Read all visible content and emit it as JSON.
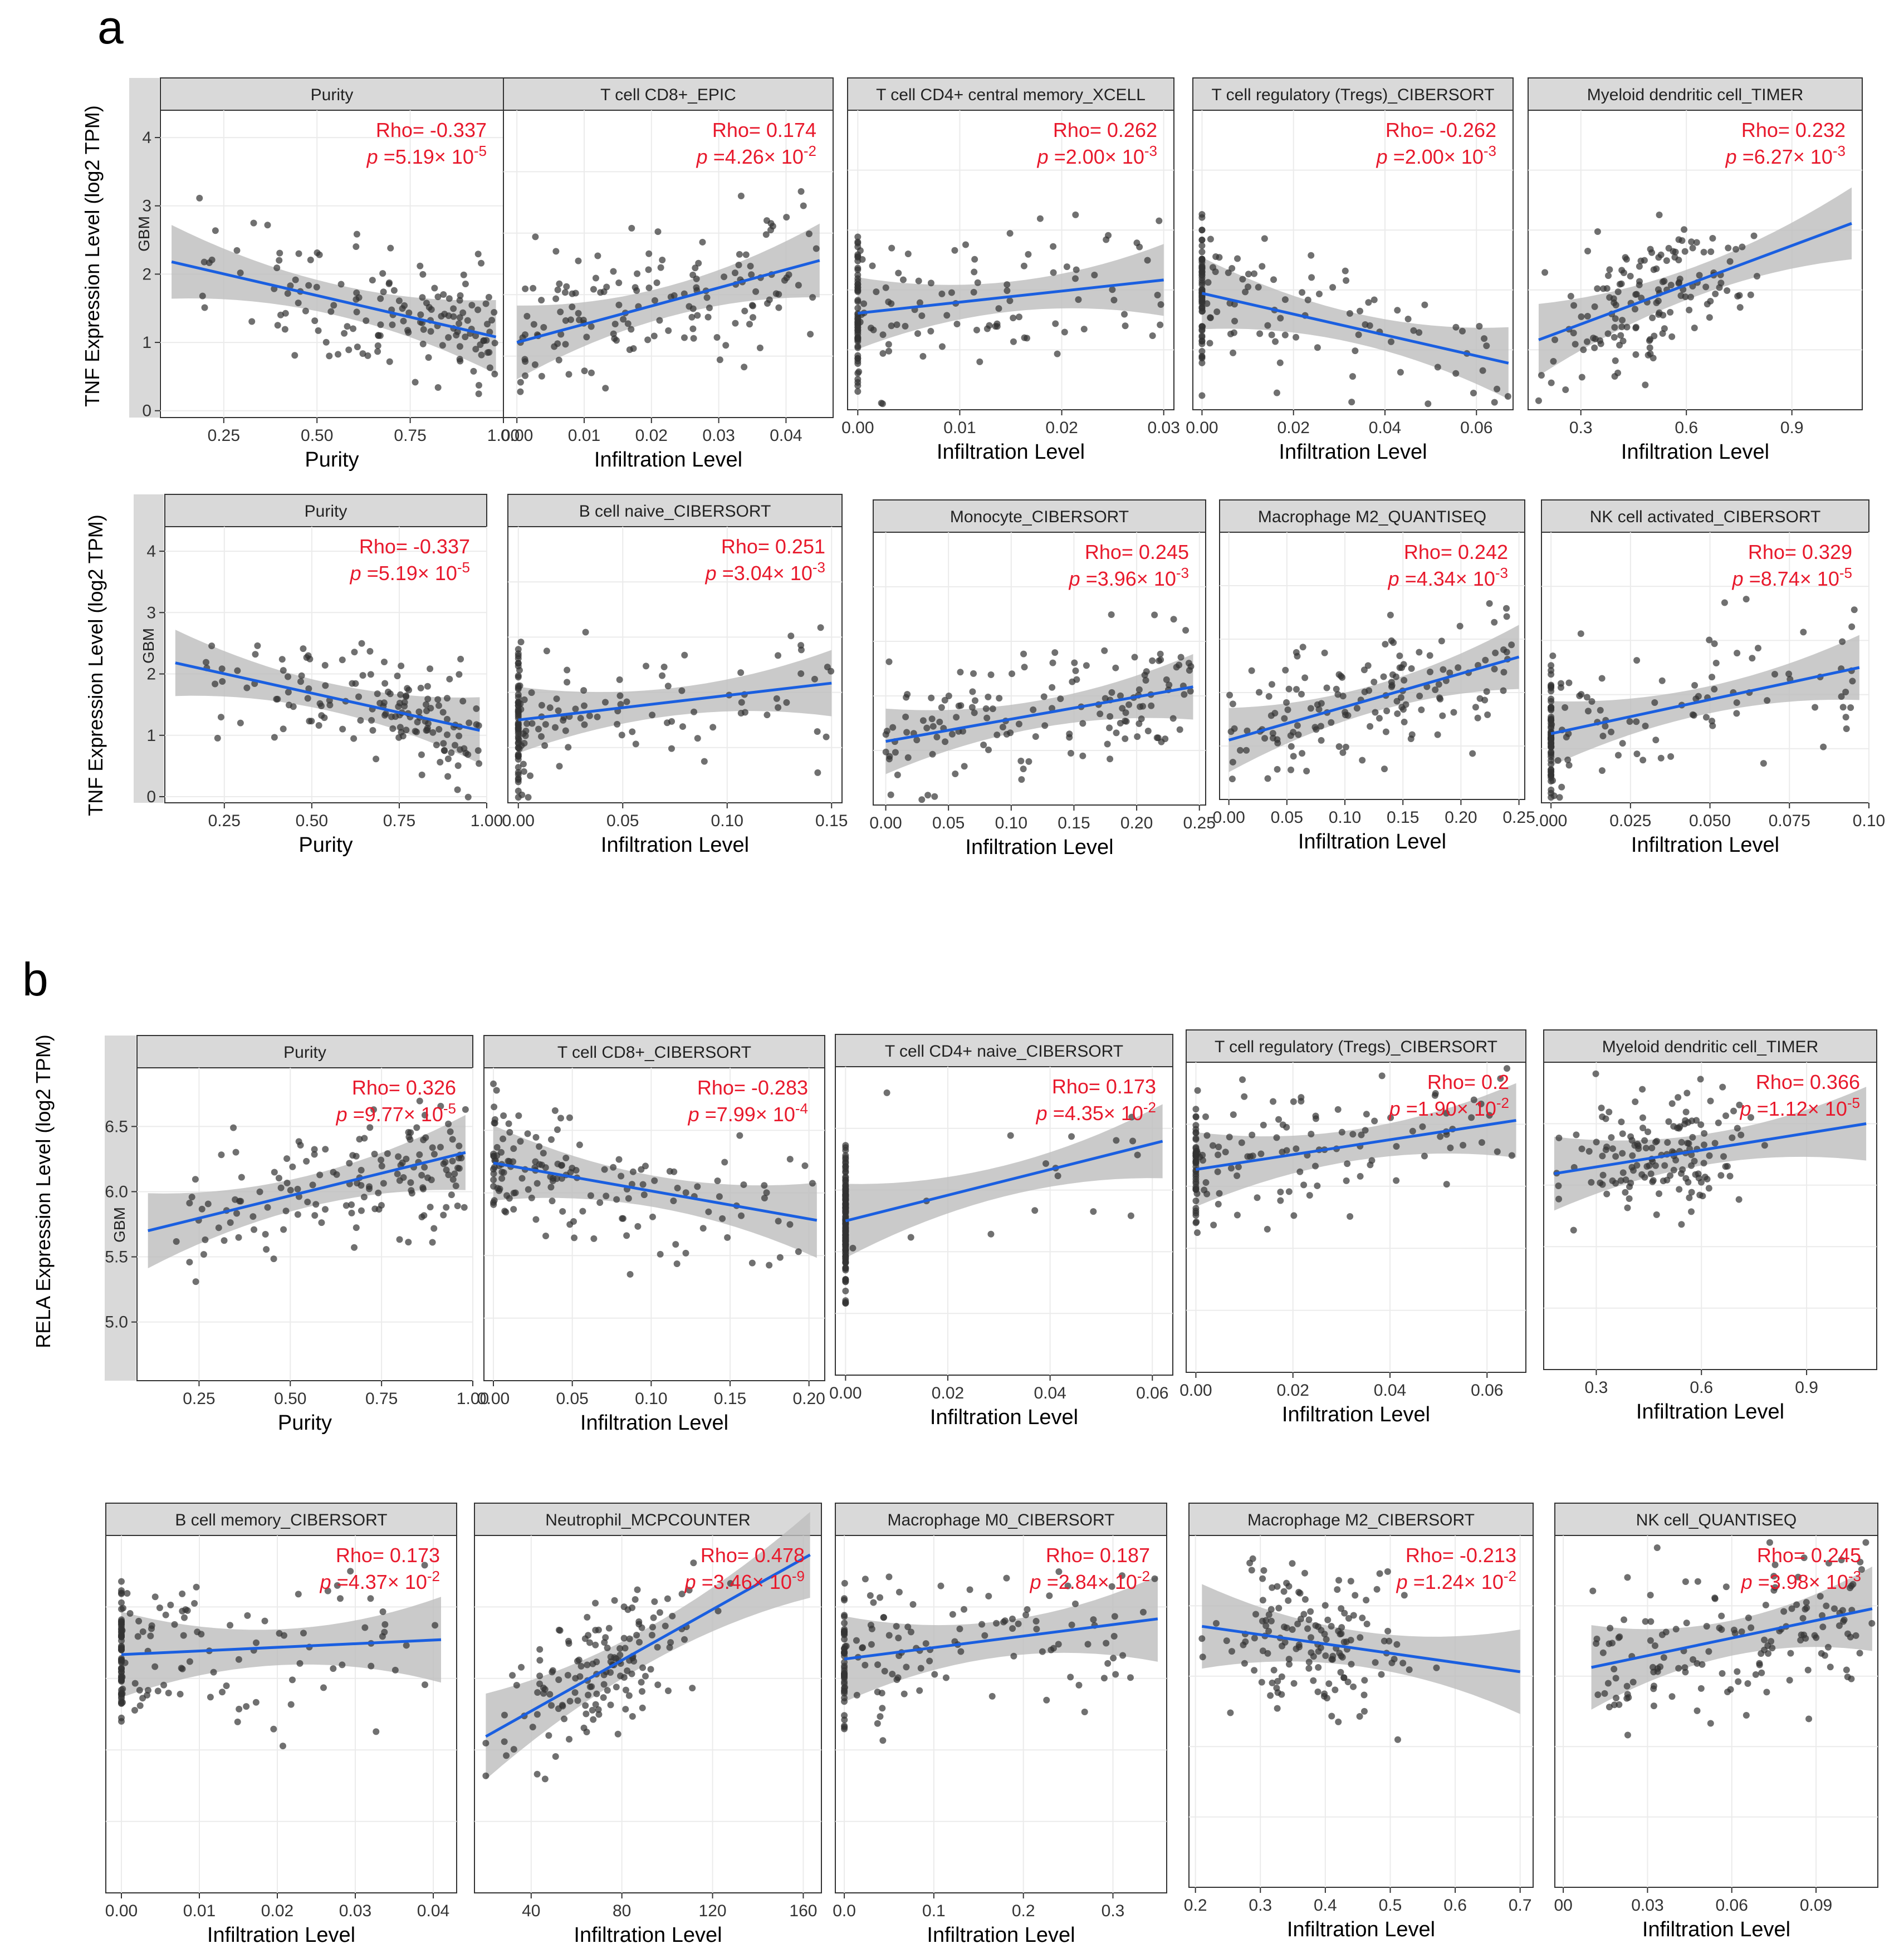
{
  "figure": {
    "panel_a_label": "a",
    "panel_b_label": "b",
    "panel_a_ylabel": "TNF Expression Level (log2 TPM)",
    "panel_b_ylabel": "RELA Expression Level (log2 TPM)",
    "facet_label": "GBM",
    "colors": {
      "fit_line": "#1a5fe0",
      "ribbon": "#bdbdbd",
      "point": "#333333",
      "annotation": "#e8192c",
      "strip": "#d9d9d9",
      "grid": "#ebebeb"
    }
  },
  "chart_data": [
    {
      "id": "a1",
      "type": "scatter",
      "title": "Purity",
      "xlabel": "Purity",
      "ylabel": "TNF Expression Level (log2 TPM)",
      "xlim": [
        0.08,
        1.0
      ],
      "ylim": [
        -0.1,
        4.4
      ],
      "xticks": [
        "0.25",
        "0.50",
        "0.75",
        "1.00"
      ],
      "xtick_values": [
        0.25,
        0.5,
        0.75,
        1.0
      ],
      "yticks": [
        "0",
        "1",
        "2",
        "3",
        "4"
      ],
      "ytick_values": [
        0,
        1,
        2,
        3,
        4
      ],
      "rho_text": "Rho= -0.337",
      "p_text": "p",
      "p_rest": " =5.19× 10",
      "p_exp": "-5",
      "fit": {
        "x0": 0.11,
        "y0": 2.18,
        "x1": 0.98,
        "y1": 1.08
      },
      "seed": 11,
      "n": 150,
      "noise": 0.7,
      "xdist": "purity",
      "xrange": [
        0.11,
        0.98
      ]
    },
    {
      "id": "a2",
      "type": "scatter",
      "title": "T cell CD8+_EPIC",
      "xlabel": "Infiltration Level",
      "ylabel": "",
      "xlim": [
        -0.002,
        0.047
      ],
      "ylim": [
        -0.1,
        4.4
      ],
      "xticks": [
        "0.00",
        "0.01",
        "0.02",
        "0.03",
        "0.04"
      ],
      "xtick_values": [
        0.0,
        0.01,
        0.02,
        0.03,
        0.04
      ],
      "yticks": [],
      "ytick_values": [],
      "rho_text": "Rho= 0.174",
      "p_text": "p",
      "p_rest": " =4.26× 10",
      "p_exp": "-2",
      "fit": {
        "x0": 0.0,
        "y0": 1.0,
        "x1": 0.045,
        "y1": 2.2
      },
      "seed": 12,
      "n": 150,
      "noise": 0.8,
      "xdist": "uniform",
      "xrange": [
        0.0,
        0.045
      ]
    },
    {
      "id": "a3",
      "type": "scatter",
      "title": "T cell CD4+ central memory_XCELL",
      "xlabel": "Infiltration Level",
      "ylabel": "",
      "xlim": [
        -0.001,
        0.031
      ],
      "ylim": [
        -0.1,
        4.4
      ],
      "xticks": [
        "0.00",
        "0.01",
        "0.02",
        "0.03"
      ],
      "xtick_values": [
        0.0,
        0.01,
        0.02,
        0.03
      ],
      "yticks": [],
      "ytick_values": [],
      "rho_text": "Rho= 0.262",
      "p_text": "p",
      "p_rest": " =2.00× 10",
      "p_exp": "-3",
      "fit": {
        "x0": 0.0,
        "y0": 1.35,
        "x1": 0.03,
        "y1": 1.85
      },
      "seed": 13,
      "n": 150,
      "noise": 0.8,
      "xdist": "zero",
      "xrange": [
        0.0,
        0.03
      ]
    },
    {
      "id": "a4",
      "type": "scatter",
      "title": "T cell regulatory (Tregs)_CIBERSORT",
      "xlabel": "Infiltration Level",
      "ylabel": "",
      "xlim": [
        -0.002,
        0.068
      ],
      "ylim": [
        -0.1,
        4.4
      ],
      "xticks": [
        "0.00",
        "0.02",
        "0.04",
        "0.06"
      ],
      "xtick_values": [
        0.0,
        0.02,
        0.04,
        0.06
      ],
      "yticks": [],
      "ytick_values": [],
      "rho_text": "Rho= -0.262",
      "p_text": "p",
      "p_rest": " =2.00× 10",
      "p_exp": "-3",
      "fit": {
        "x0": 0.0,
        "y0": 1.65,
        "x1": 0.067,
        "y1": 0.6
      },
      "seed": 14,
      "n": 150,
      "noise": 0.75,
      "xdist": "zero",
      "xrange": [
        0.0,
        0.067
      ]
    },
    {
      "id": "a5",
      "type": "scatter",
      "title": "Myeloid dendritic cell_TIMER",
      "xlabel": "Infiltration Level",
      "ylabel": "",
      "xlim": [
        0.15,
        1.1
      ],
      "ylim": [
        -0.1,
        4.4
      ],
      "xticks": [
        "0.3",
        "0.6",
        "0.9"
      ],
      "xtick_values": [
        0.3,
        0.6,
        0.9
      ],
      "yticks": [],
      "ytick_values": [],
      "rho_text": "Rho= 0.232",
      "p_text": "p",
      "p_rest": " =6.27× 10",
      "p_exp": "-3",
      "fit": {
        "x0": 0.18,
        "y0": 0.95,
        "x1": 1.07,
        "y1": 2.7
      },
      "seed": 15,
      "n": 150,
      "noise": 0.75,
      "xdist": "cluster",
      "xrange": [
        0.18,
        1.07
      ]
    },
    {
      "id": "a6",
      "type": "scatter",
      "title": "Purity",
      "xlabel": "Purity",
      "ylabel": "TNF Expression Level (log2 TPM)",
      "xlim": [
        0.08,
        1.0
      ],
      "ylim": [
        -0.1,
        4.4
      ],
      "xticks": [
        "0.25",
        "0.50",
        "0.75",
        "1.00"
      ],
      "xtick_values": [
        0.25,
        0.5,
        0.75,
        1.0
      ],
      "yticks": [
        "0",
        "1",
        "2",
        "3",
        "4"
      ],
      "ytick_values": [
        0,
        1,
        2,
        3,
        4
      ],
      "rho_text": "Rho= -0.337",
      "p_text": "p",
      "p_rest": " =5.19× 10",
      "p_exp": "-5",
      "fit": {
        "x0": 0.11,
        "y0": 2.18,
        "x1": 0.98,
        "y1": 1.08
      },
      "seed": 11,
      "n": 150,
      "noise": 0.7,
      "xdist": "purity",
      "xrange": [
        0.11,
        0.98
      ]
    },
    {
      "id": "a7",
      "type": "scatter",
      "title": "B cell naive_CIBERSORT",
      "xlabel": "Infiltration Level",
      "ylabel": "",
      "xlim": [
        -0.005,
        0.155
      ],
      "ylim": [
        -0.1,
        4.4
      ],
      "xticks": [
        "0.00",
        "0.05",
        "0.10",
        "0.15"
      ],
      "xtick_values": [
        0.0,
        0.05,
        0.1,
        0.15
      ],
      "yticks": [],
      "ytick_values": [],
      "rho_text": "Rho= 0.251",
      "p_text": "p",
      "p_rest": " =3.04× 10",
      "p_exp": "-3",
      "fit": {
        "x0": 0.0,
        "y0": 1.25,
        "x1": 0.15,
        "y1": 1.85
      },
      "seed": 17,
      "n": 150,
      "noise": 0.8,
      "xdist": "zero",
      "xrange": [
        0.0,
        0.15
      ]
    },
    {
      "id": "a8",
      "type": "scatter",
      "title": "Monocyte_CIBERSORT",
      "xlabel": "Infiltration Level",
      "ylabel": "",
      "xlim": [
        -0.01,
        0.255
      ],
      "ylim": [
        -0.1,
        4.4
      ],
      "xticks": [
        "0.00",
        "0.05",
        "0.10",
        "0.15",
        "0.20",
        "0.25"
      ],
      "xtick_values": [
        0.0,
        0.05,
        0.1,
        0.15,
        0.2,
        0.25
      ],
      "yticks": [],
      "ytick_values": [],
      "rho_text": "Rho= 0.245",
      "p_text": "p",
      "p_rest": " =3.96× 10",
      "p_exp": "-3",
      "fit": {
        "x0": 0.0,
        "y0": 0.95,
        "x1": 0.245,
        "y1": 1.85
      },
      "seed": 18,
      "n": 150,
      "noise": 0.8,
      "xdist": "uniform",
      "xrange": [
        0.0,
        0.245
      ]
    },
    {
      "id": "a9",
      "type": "scatter",
      "title": "Macrophage M2_QUANTISEQ",
      "xlabel": "Infiltration Level",
      "ylabel": "",
      "xlim": [
        -0.008,
        0.255
      ],
      "ylim": [
        -0.1,
        4.4
      ],
      "xticks": [
        "0.00",
        "0.05",
        "0.10",
        "0.15",
        "0.20",
        "0.25"
      ],
      "xtick_values": [
        0.0,
        0.05,
        0.1,
        0.15,
        0.2,
        0.25
      ],
      "yticks": [],
      "ytick_values": [],
      "rho_text": "Rho= 0.242",
      "p_text": "p",
      "p_rest": " =4.34× 10",
      "p_exp": "-3",
      "fit": {
        "x0": 0.0,
        "y0": 0.9,
        "x1": 0.25,
        "y1": 2.3
      },
      "seed": 19,
      "n": 150,
      "noise": 0.8,
      "xdist": "uniform",
      "xrange": [
        0.0,
        0.25
      ]
    },
    {
      "id": "a10",
      "type": "scatter",
      "title": "NK cell activated_CIBERSORT",
      "xlabel": "Infiltration Level",
      "ylabel": "",
      "xlim": [
        -0.003,
        0.1
      ],
      "ylim": [
        -0.1,
        4.4
      ],
      "xticks": [
        ".000",
        "0.025",
        "0.050",
        "0.075",
        "0.10"
      ],
      "xtick_values": [
        0.0,
        0.025,
        0.05,
        0.075,
        0.1
      ],
      "yticks": [],
      "ytick_values": [],
      "rho_text": "Rho= 0.329",
      "p_text": "p",
      "p_rest": " =8.74× 10",
      "p_exp": "-5",
      "fit": {
        "x0": 0.0,
        "y0": 1.05,
        "x1": 0.097,
        "y1": 2.15
      },
      "seed": 20,
      "n": 150,
      "noise": 0.8,
      "xdist": "zero",
      "xrange": [
        0.0,
        0.097
      ]
    },
    {
      "id": "b1",
      "type": "scatter",
      "title": "Purity",
      "xlabel": "Purity",
      "ylabel": "RELA Expression Level (log2 TPM)",
      "xlim": [
        0.08,
        1.0
      ],
      "ylim": [
        4.55,
        6.95
      ],
      "xticks": [
        "0.25",
        "0.50",
        "0.75",
        "1.00"
      ],
      "xtick_values": [
        0.25,
        0.5,
        0.75,
        1.0
      ],
      "yticks": [
        "5.0",
        "5.5",
        "6.0",
        "6.5"
      ],
      "ytick_values": [
        5.0,
        5.5,
        6.0,
        6.5
      ],
      "rho_text": "Rho= 0.326",
      "p_text": "p",
      "p_rest": " =9.77× 10",
      "p_exp": "-5",
      "fit": {
        "x0": 0.11,
        "y0": 5.7,
        "x1": 0.98,
        "y1": 6.3
      },
      "seed": 31,
      "n": 150,
      "noise": 0.35,
      "xdist": "purity",
      "xrange": [
        0.11,
        0.98
      ]
    },
    {
      "id": "b2",
      "type": "scatter",
      "title": "T cell CD8+_CIBERSORT",
      "xlabel": "Infiltration Level",
      "ylabel": "",
      "xlim": [
        -0.006,
        0.21
      ],
      "ylim": [
        4.55,
        6.95
      ],
      "xticks": [
        "0.00",
        "0.05",
        "0.10",
        "0.15",
        "0.20"
      ],
      "xtick_values": [
        0.0,
        0.05,
        0.1,
        0.15,
        0.2
      ],
      "yticks": [],
      "ytick_values": [],
      "rho_text": "Rho= -0.283",
      "p_text": "p",
      "p_rest": " =7.99× 10",
      "p_exp": "-4",
      "fit": {
        "x0": 0.0,
        "y0": 6.22,
        "x1": 0.205,
        "y1": 5.78
      },
      "seed": 32,
      "n": 150,
      "noise": 0.35,
      "xdist": "low",
      "xrange": [
        0.0,
        0.205
      ]
    },
    {
      "id": "b3",
      "type": "scatter",
      "title": "T cell CD4+ naive_CIBERSORT",
      "xlabel": "Infiltration Level",
      "ylabel": "",
      "xlim": [
        -0.002,
        0.064
      ],
      "ylim": [
        4.55,
        6.95
      ],
      "xticks": [
        "0.00",
        "0.02",
        "0.04",
        "0.06"
      ],
      "xtick_values": [
        0.0,
        0.02,
        0.04,
        0.06
      ],
      "yticks": [],
      "ytick_values": [],
      "rho_text": "Rho= 0.173",
      "p_text": "p",
      "p_rest": " =4.35× 10",
      "p_exp": "-2",
      "fit": {
        "x0": 0.0,
        "y0": 5.75,
        "x1": 0.062,
        "y1": 6.37
      },
      "seed": 33,
      "n": 150,
      "noise": 0.4,
      "xdist": "allzero",
      "xrange": [
        0.0,
        0.062
      ]
    },
    {
      "id": "b4",
      "type": "scatter",
      "title": "T cell regulatory (Tregs)_CIBERSORT",
      "xlabel": "Infiltration Level",
      "ylabel": "",
      "xlim": [
        -0.002,
        0.068
      ],
      "ylim": [
        4.55,
        6.95
      ],
      "xticks": [
        "0.00",
        "0.02",
        "0.04",
        "0.06"
      ],
      "xtick_values": [
        0.0,
        0.02,
        0.04,
        0.06
      ],
      "yticks": [],
      "ytick_values": [],
      "rho_text": "Rho= 0.2",
      "p_text": "p",
      "p_rest": " =1.90× 10",
      "p_exp": "-2",
      "fit": {
        "x0": 0.0,
        "y0": 6.12,
        "x1": 0.066,
        "y1": 6.5
      },
      "seed": 34,
      "n": 150,
      "noise": 0.35,
      "xdist": "zero",
      "xrange": [
        0.0,
        0.066
      ]
    },
    {
      "id": "b5",
      "type": "scatter",
      "title": "Myeloid dendritic cell_TIMER",
      "xlabel": "Infiltration Level",
      "ylabel": "",
      "xlim": [
        0.15,
        1.1
      ],
      "ylim": [
        4.55,
        6.95
      ],
      "xticks": [
        "0.3",
        "0.6",
        "0.9"
      ],
      "xtick_values": [
        0.3,
        0.6,
        0.9
      ],
      "yticks": [],
      "ytick_values": [],
      "rho_text": "Rho= 0.366",
      "p_text": "p",
      "p_rest": " =1.12× 10",
      "p_exp": "-5",
      "fit": {
        "x0": 0.18,
        "y0": 6.08,
        "x1": 1.07,
        "y1": 6.47
      },
      "seed": 35,
      "n": 150,
      "noise": 0.35,
      "xdist": "cluster",
      "xrange": [
        0.18,
        1.07
      ]
    },
    {
      "id": "b6",
      "type": "scatter",
      "title": "B cell memory_CIBERSORT",
      "xlabel": "Infiltration Level",
      "ylabel": "",
      "xlim": [
        -0.002,
        0.043
      ],
      "ylim": [
        4.55,
        6.95
      ],
      "xticks": [
        "0.00",
        "0.01",
        "0.02",
        "0.03",
        "0.04"
      ],
      "xtick_values": [
        0.0,
        0.01,
        0.02,
        0.03,
        0.04
      ],
      "yticks": [],
      "ytick_values": [],
      "rho_text": "Rho= 0.173",
      "p_text": "p",
      "p_rest": " =4.37× 10",
      "p_exp": "-2",
      "fit": {
        "x0": 0.0,
        "y0": 6.15,
        "x1": 0.041,
        "y1": 6.25
      },
      "seed": 36,
      "n": 150,
      "noise": 0.35,
      "xdist": "zero",
      "xrange": [
        0.0,
        0.041
      ]
    },
    {
      "id": "b7",
      "type": "scatter",
      "title": "Neutrophil_MCPCOUNTER",
      "xlabel": "Infiltration Level",
      "ylabel": "",
      "xlim": [
        15,
        168
      ],
      "ylim": [
        4.55,
        6.95
      ],
      "xticks": [
        "40",
        "80",
        "120",
        "160"
      ],
      "xtick_values": [
        40,
        80,
        120,
        160
      ],
      "yticks": [],
      "ytick_values": [],
      "rho_text": "Rho= 0.478",
      "p_text": "p",
      "p_rest": " =3.46× 10",
      "p_exp": "-9",
      "fit": {
        "x0": 20,
        "y0": 5.6,
        "x1": 163,
        "y1": 6.82
      },
      "seed": 37,
      "n": 150,
      "noise": 0.3,
      "xdist": "cluster",
      "xrange": [
        20,
        163
      ]
    },
    {
      "id": "b8",
      "type": "scatter",
      "title": "Macrophage M0_CIBERSORT",
      "xlabel": "Infiltration Level",
      "ylabel": "",
      "xlim": [
        -0.01,
        0.36
      ],
      "ylim": [
        4.55,
        6.95
      ],
      "xticks": [
        "0.0",
        "0.1",
        "0.2",
        "0.3"
      ],
      "xtick_values": [
        0.0,
        0.1,
        0.2,
        0.3
      ],
      "yticks": [],
      "ytick_values": [],
      "rho_text": "Rho= 0.187",
      "p_text": "p",
      "p_rest": " =2.84× 10",
      "p_exp": "-2",
      "fit": {
        "x0": 0.0,
        "y0": 6.12,
        "x1": 0.35,
        "y1": 6.39
      },
      "seed": 38,
      "n": 150,
      "noise": 0.35,
      "xdist": "zero",
      "xrange": [
        0.0,
        0.35
      ]
    },
    {
      "id": "b9",
      "type": "scatter",
      "title": "Macrophage M2_CIBERSORT",
      "xlabel": "Infiltration Level",
      "ylabel": "",
      "xlim": [
        0.19,
        0.72
      ],
      "ylim": [
        4.55,
        6.95
      ],
      "xticks": [
        "0.2",
        "0.3",
        "0.4",
        "0.5",
        "0.6",
        "0.7"
      ],
      "xtick_values": [
        0.2,
        0.3,
        0.4,
        0.5,
        0.6,
        0.7
      ],
      "yticks": [],
      "ytick_values": [],
      "rho_text": "Rho= -0.213",
      "p_text": "p",
      "p_rest": " =1.24× 10",
      "p_exp": "-2",
      "fit": {
        "x0": 0.21,
        "y0": 6.33,
        "x1": 0.7,
        "y1": 6.02
      },
      "seed": 39,
      "n": 150,
      "noise": 0.35,
      "xdist": "cluster",
      "xrange": [
        0.21,
        0.7
      ]
    },
    {
      "id": "b10",
      "type": "scatter",
      "title": "NK cell_QUANTISEQ",
      "xlabel": "Infiltration Level",
      "ylabel": "",
      "xlim": [
        -0.003,
        0.112
      ],
      "ylim": [
        4.55,
        6.95
      ],
      "xticks": [
        "00",
        "0.03",
        "0.06",
        "0.09"
      ],
      "xtick_values": [
        0.0,
        0.03,
        0.06,
        0.09
      ],
      "yticks": [],
      "ytick_values": [],
      "rho_text": "Rho= 0.245",
      "p_text": "p",
      "p_rest": " =3.98× 10",
      "p_exp": "-3",
      "fit": {
        "x0": 0.01,
        "y0": 6.05,
        "x1": 0.11,
        "y1": 6.45
      },
      "seed": 40,
      "n": 150,
      "noise": 0.35,
      "xdist": "uniform",
      "xrange": [
        0.01,
        0.11
      ]
    }
  ]
}
